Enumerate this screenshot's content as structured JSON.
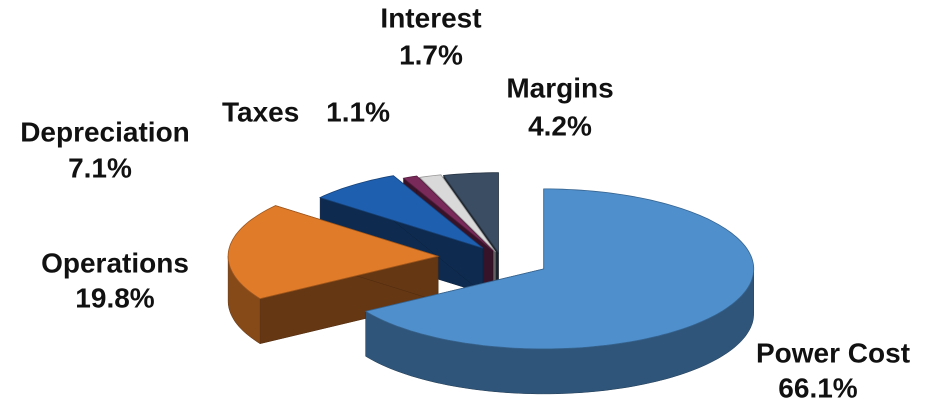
{
  "chart_data": {
    "type": "pie3d",
    "categories": [
      "Power Cost",
      "Operations",
      "Depreciation",
      "Taxes",
      "Interest",
      "Margins"
    ],
    "values": [
      66.1,
      19.8,
      7.1,
      1.1,
      1.7,
      4.2
    ],
    "value_labels": [
      "66.1%",
      "19.8%",
      "7.1%",
      "1.1%",
      "1.7%",
      "4.2%"
    ],
    "colors": [
      "#4f8fcc",
      "#e07b2a",
      "#1f5fb0",
      "#7a2a5a",
      "#d9d9d9",
      "#3b4d63"
    ]
  }
}
